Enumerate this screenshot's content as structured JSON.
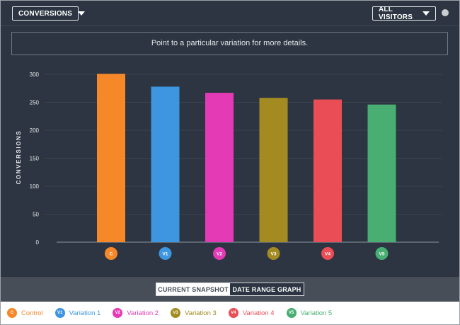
{
  "header": {
    "metric_dropdown": "CONVERSIONS",
    "segment_dropdown": "ALL VISITORS"
  },
  "hint": "Point to a particular variation for more details.",
  "view_toggle": {
    "current": "CURRENT SNAPSHOT",
    "range": "DATE RANGE GRAPH"
  },
  "chart_data": {
    "type": "bar",
    "title": "",
    "xlabel": "",
    "ylabel": "CONVERSIONS",
    "ylim": [
      0,
      300
    ],
    "yticks": [
      0,
      50,
      100,
      150,
      200,
      250,
      300
    ],
    "grid": true,
    "legend_position": "bottom",
    "categories": [
      "C",
      "V1",
      "V2",
      "V3",
      "V4",
      "V5"
    ],
    "series": [
      {
        "names": [
          "Control",
          "Variation 1",
          "Variation 2",
          "Variation 3",
          "Variation 4",
          "Variation 5"
        ],
        "values": [
          301,
          278,
          267,
          258,
          255,
          246
        ],
        "colors": [
          "#f7882a",
          "#3e95e0",
          "#e43ab6",
          "#a38a21",
          "#ea4d55",
          "#48ae72"
        ]
      }
    ]
  },
  "colors": {
    "panel_bg": "#2c3541",
    "grid_line": "#3a4450",
    "axis_text": "#e6e8eb"
  }
}
